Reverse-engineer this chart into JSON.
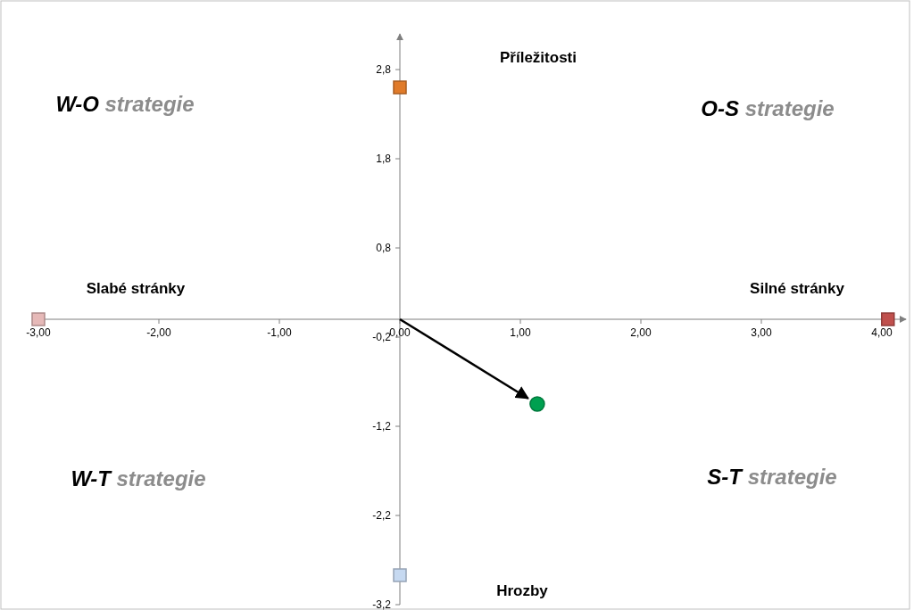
{
  "chart_data": {
    "type": "scatter",
    "xlim": [
      -3,
      4.2
    ],
    "ylim": [
      -3.2,
      3.2
    ],
    "xticks": [
      {
        "value": -3,
        "label": "-3,00"
      },
      {
        "value": -2,
        "label": "-2,00"
      },
      {
        "value": -1,
        "label": "-1,00"
      },
      {
        "value": 0,
        "label": "0,00"
      },
      {
        "value": 1,
        "label": "1,00"
      },
      {
        "value": 2,
        "label": "2,00"
      },
      {
        "value": 3,
        "label": "3,00"
      },
      {
        "value": 4,
        "label": "4,00"
      }
    ],
    "yticks": [
      {
        "value": 2.8,
        "label": "2,8"
      },
      {
        "value": 1.8,
        "label": "1,8"
      },
      {
        "value": 0.8,
        "label": "0,8"
      },
      {
        "value": -0.2,
        "label": "-0,2"
      },
      {
        "value": -1.2,
        "label": "-1,2"
      },
      {
        "value": -2.2,
        "label": "-2,2"
      },
      {
        "value": -3.2,
        "label": "-3,2"
      }
    ],
    "grid": false,
    "series": [
      {
        "x": [
          0
        ],
        "values": [
          2.6
        ],
        "color": "#e07b2a",
        "marker": "square"
      },
      {
        "x": [
          4.05
        ],
        "values": [
          0
        ],
        "color": "#c0504d",
        "marker": "square"
      },
      {
        "x": [
          -3
        ],
        "values": [
          0
        ],
        "color": "#e6b9b8",
        "marker": "square"
      },
      {
        "x": [
          0
        ],
        "values": [
          -2.87
        ],
        "color": "#c6d9f1",
        "marker": "square"
      },
      {
        "x": [
          1.14
        ],
        "values": [
          -0.95
        ],
        "color": "#00a050",
        "marker": "circle"
      }
    ],
    "annotations": [
      "Příležitosti",
      "Slabé stránky",
      "Silné stránky",
      "Hrozby",
      "W-O strategie",
      "O-S strategie",
      "W-T strategie",
      "S-T strategie"
    ]
  }
}
